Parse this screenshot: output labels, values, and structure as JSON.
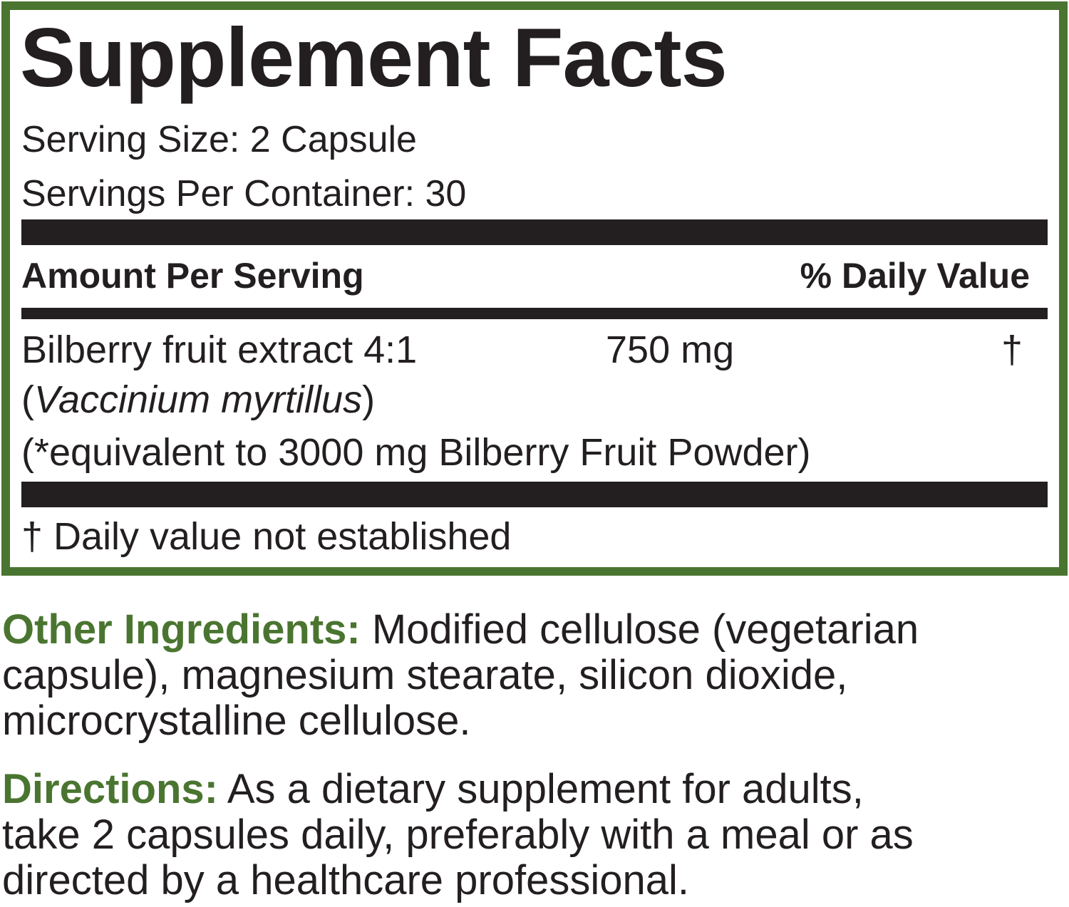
{
  "facts": {
    "title": "Supplement Facts",
    "serving_size": "Serving Size: 2 Capsule",
    "servings_per_container": "Servings Per Container: 30",
    "amount_header": "Amount Per Serving",
    "dv_header": "% Daily Value",
    "ingredient": {
      "name": "Bilberry fruit extract 4:1",
      "latin_open": "(",
      "latin": "Vaccinium myrtillus",
      "latin_close": ")",
      "equivalent": "(*equivalent to 3000 mg Bilberry Fruit Powder)",
      "amount": "750 mg",
      "dv": "†"
    },
    "footnote": "† Daily value not established"
  },
  "other_ingredients": {
    "label": "Other Ingredients:",
    "lines": [
      " Modified cellulose (vegetarian",
      "capsule), magnesium stearate, silicon dioxide,",
      "microcrystalline cellulose."
    ]
  },
  "directions": {
    "label": "Directions:",
    "lines": [
      " As a dietary supplement for adults,",
      "take 2 capsules daily, preferably with a meal or as",
      "directed by a healthcare professional."
    ]
  },
  "colors": {
    "accent": "#4a7530",
    "text": "#231f20"
  }
}
